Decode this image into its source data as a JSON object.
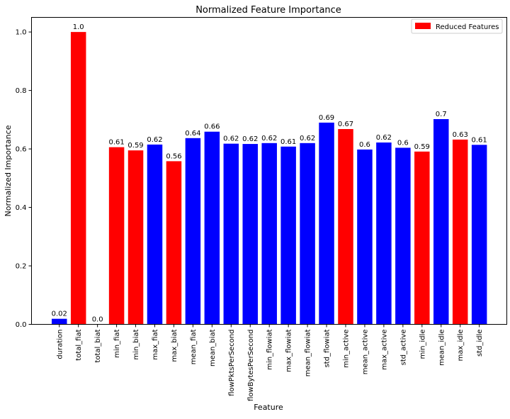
{
  "chart_data": {
    "type": "bar",
    "title": "Normalized Feature Importance",
    "xlabel": "Feature",
    "ylabel": "Normalized Importance",
    "ylim": [
      0,
      1.05
    ],
    "yticks": [
      0.0,
      0.2,
      0.4,
      0.6,
      0.8,
      1.0
    ],
    "ytick_labels": [
      "0.0",
      "0.2",
      "0.4",
      "0.6",
      "0.8",
      "1.0"
    ],
    "grid": false,
    "legend": {
      "placement": "top-right",
      "entries": [
        {
          "label": "Reduced Features",
          "color": "#ff0000"
        }
      ]
    },
    "colors": {
      "reduced": "#ff0000",
      "other": "#0000ff"
    },
    "categories": [
      "duration",
      "total_fiat",
      "total_biat",
      "min_fiat",
      "min_biat",
      "max_fiat",
      "max_biat",
      "mean_fiat",
      "mean_biat",
      "flowPktsPerSecond",
      "flowBytesPerSecond",
      "min_flowiat",
      "max_flowiat",
      "mean_flowiat",
      "std_flowiat",
      "min_active",
      "mean_active",
      "max_active",
      "std_active",
      "min_idle",
      "mean_idle",
      "max_idle",
      "std_idle"
    ],
    "values": [
      0.019,
      1.0,
      0.0,
      0.606,
      0.595,
      0.615,
      0.558,
      0.637,
      0.659,
      0.618,
      0.617,
      0.62,
      0.608,
      0.62,
      0.69,
      0.668,
      0.598,
      0.622,
      0.604,
      0.591,
      0.702,
      0.632,
      0.614
    ],
    "value_labels": [
      "0.02",
      "1.0",
      "0.0",
      "0.61",
      "0.59",
      "0.62",
      "0.56",
      "0.64",
      "0.66",
      "0.62",
      "0.62",
      "0.62",
      "0.61",
      "0.62",
      "0.69",
      "0.67",
      "0.6",
      "0.62",
      "0.6",
      "0.59",
      "0.7",
      "0.63",
      "0.61"
    ],
    "reduced": [
      false,
      true,
      true,
      true,
      true,
      false,
      true,
      false,
      false,
      false,
      false,
      false,
      false,
      false,
      false,
      true,
      false,
      false,
      false,
      true,
      false,
      true,
      false
    ]
  }
}
